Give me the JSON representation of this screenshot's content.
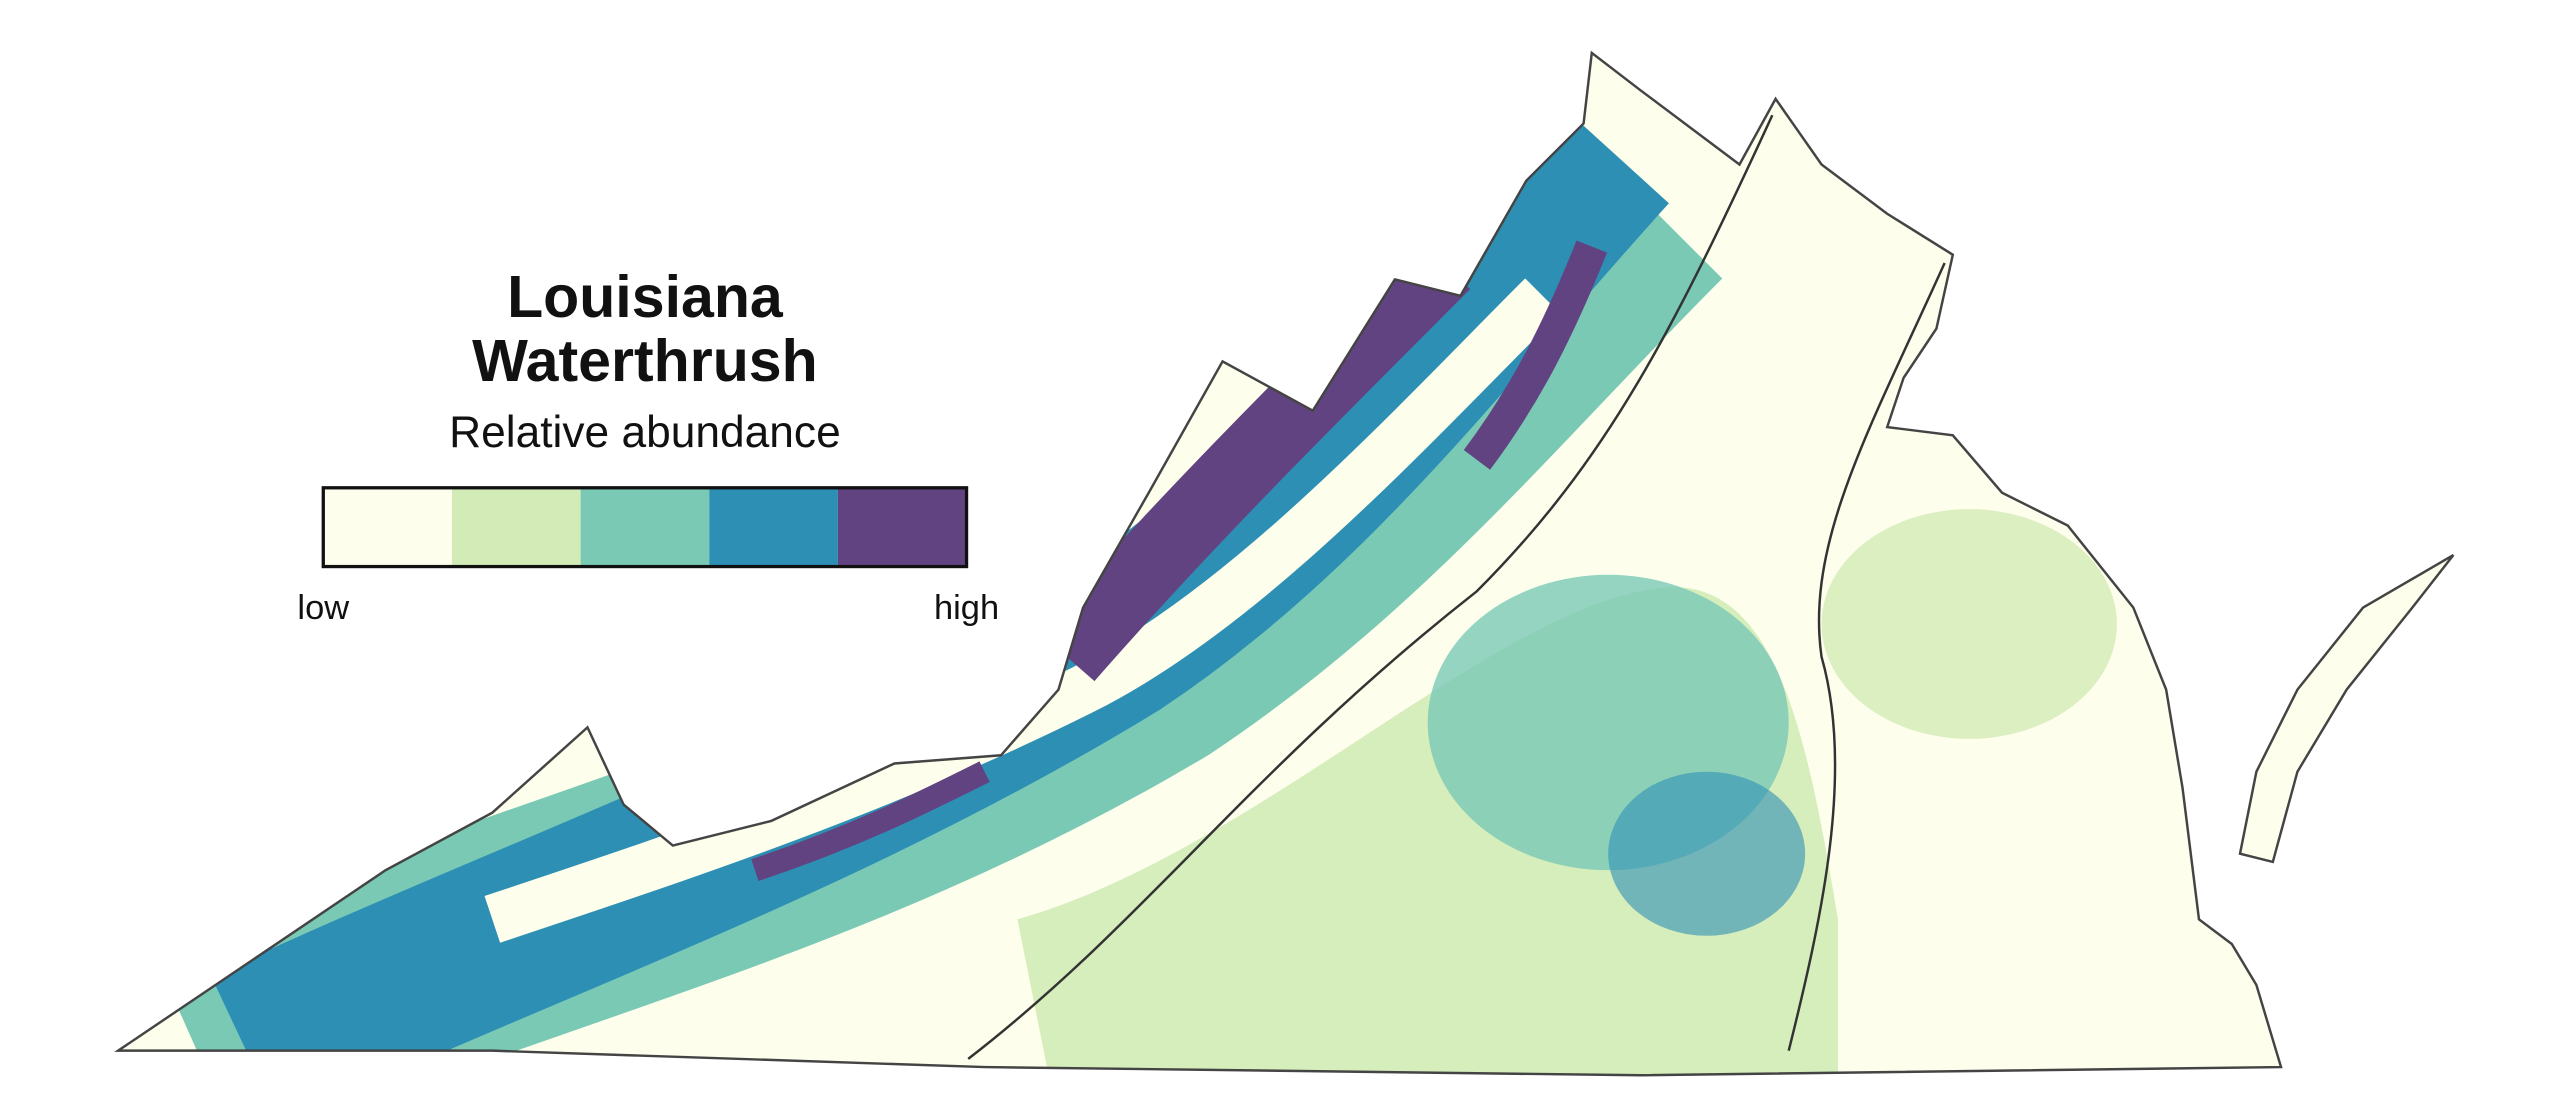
{
  "map": {
    "title": [
      "Louisiana",
      "Waterthrush"
    ],
    "subtitle": "Relative abundance",
    "legend": {
      "colors": [
        "#fdfeec",
        "#d2ebb7",
        "#79c9b5",
        "#2e8fb5",
        "#624382"
      ],
      "low_label": "low",
      "high_label": "high"
    }
  }
}
